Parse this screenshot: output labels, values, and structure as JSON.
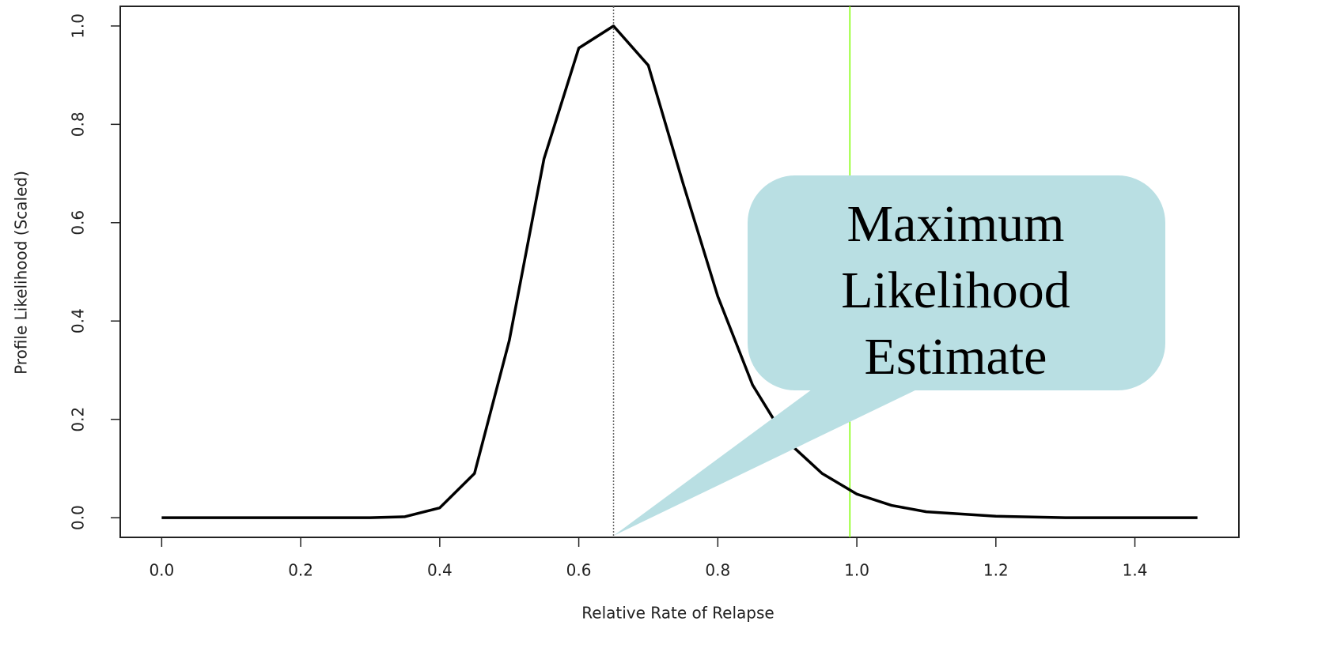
{
  "chart_data": {
    "type": "line",
    "x_label": "Relative Rate of Relapse",
    "y_label": "Profile Likelihood (Scaled)",
    "x": [
      0,
      0.3,
      0.35,
      0.4,
      0.45,
      0.5,
      0.55,
      0.6,
      0.65,
      0.7,
      0.75,
      0.8,
      0.85,
      0.9,
      0.95,
      1.0,
      1.05,
      1.1,
      1.2,
      1.3,
      1.49
    ],
    "values": [
      0,
      0,
      0.002,
      0.02,
      0.09,
      0.36,
      0.73,
      0.955,
      1.0,
      0.92,
      0.68,
      0.45,
      0.27,
      0.155,
      0.09,
      0.048,
      0.025,
      0.012,
      0.003,
      0,
      0
    ],
    "color": "#000000",
    "xlim": [
      -0.0596,
      1.5496
    ],
    "ylim": [
      -0.04,
      1.04
    ],
    "xticks": [
      {
        "value": 0,
        "label": "0.0"
      },
      0.2,
      0.4,
      0.6,
      0.8,
      {
        "value": 1,
        "label": "1.0"
      },
      1.2,
      1.4
    ],
    "yticks": [
      {
        "value": 0,
        "label": "0.0"
      },
      0.2,
      0.4,
      0.6,
      0.8,
      {
        "value": 1,
        "label": "1.0"
      }
    ],
    "vlines": [
      {
        "x": 0.65,
        "color": "#666666",
        "style": "dotted"
      },
      {
        "x": 0.99,
        "color": "#7fff00",
        "style": "solid"
      }
    ],
    "annotation": [
      "Maximum",
      "Likelihood",
      "Estimate"
    ]
  }
}
